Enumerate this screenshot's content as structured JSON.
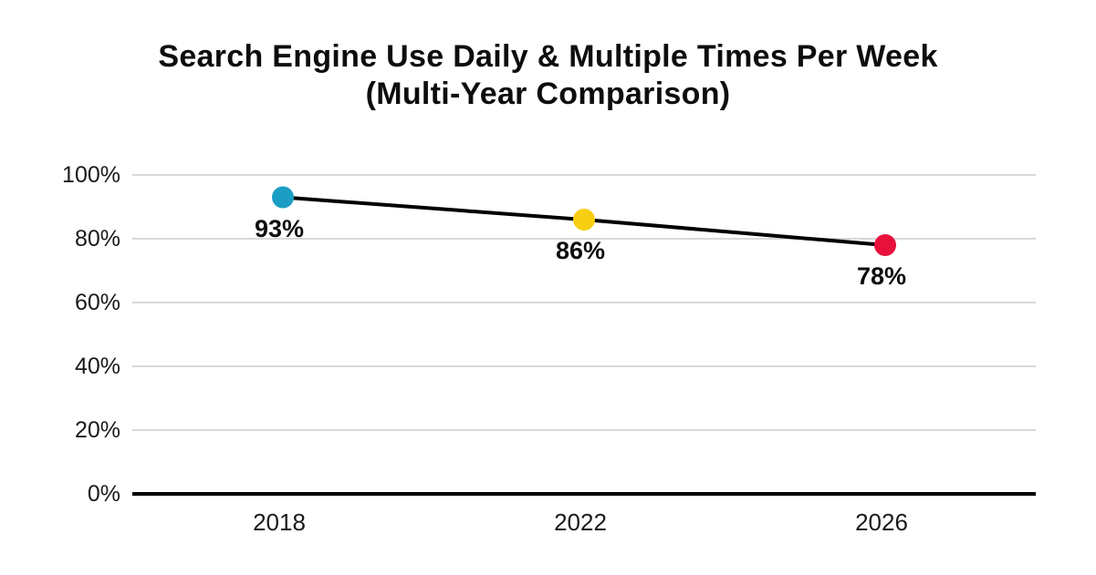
{
  "background": "#ffffff",
  "chart_data": {
    "type": "line",
    "title": "Search Engine Use Daily & Multiple Times Per Week",
    "subtitle": "(Multi-Year Comparison)",
    "categories": [
      "2018",
      "2022",
      "2026"
    ],
    "series": [
      {
        "name": "Search engine use daily & multiple times per week",
        "values": [
          93,
          86,
          78
        ],
        "line_color": "#000000",
        "point_colors": [
          "#1c9ec4",
          "#f8ce12",
          "#e8113c"
        ]
      }
    ],
    "data_labels": [
      "93%",
      "86%",
      "78%"
    ],
    "xlabel": "",
    "ylabel": "",
    "ylim": [
      0,
      100
    ],
    "yticks": [
      "100%",
      "80%",
      "60%",
      "40%",
      "20%",
      "0%"
    ],
    "ytick_values": [
      100,
      80,
      60,
      40,
      20,
      0
    ],
    "grid": "horizontal",
    "gridline_color": "#d8d8d8",
    "axis_color": "#000000",
    "legend": "none",
    "text_color": "#1a1a1a"
  }
}
